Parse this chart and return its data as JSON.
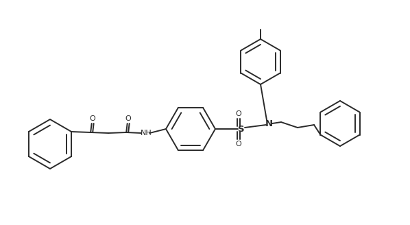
{
  "background_color": "#ffffff",
  "line_color": "#2a2a2a",
  "line_width": 1.4,
  "figsize": [
    5.98,
    3.28
  ],
  "dpi": 100,
  "xlim": [
    0,
    598
  ],
  "ylim": [
    0,
    328
  ]
}
